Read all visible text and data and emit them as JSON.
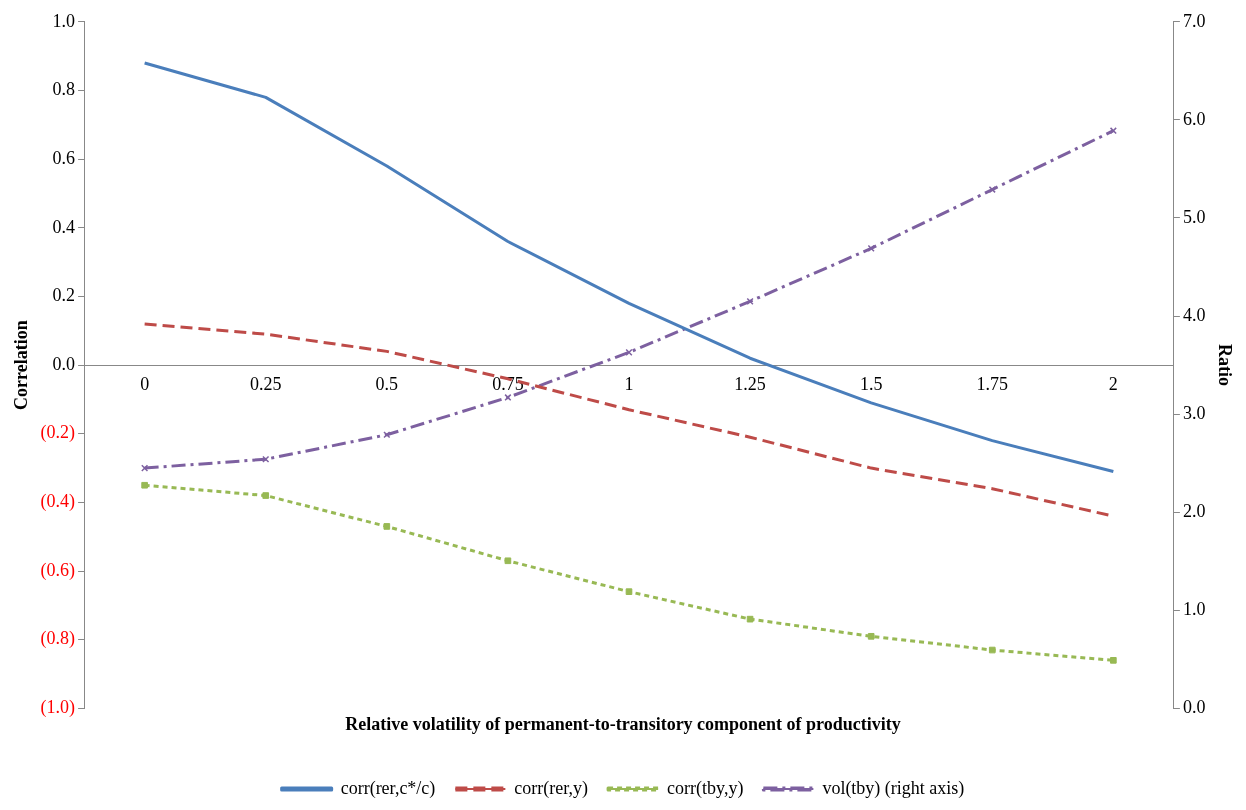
{
  "chart_data": {
    "type": "line",
    "xlabel": "Relative volatility of permanent-to-transitory component of productivity",
    "ylabel": "Correlation",
    "y2label": "Ratio",
    "categories": [
      "0",
      "0.25",
      "0.5",
      "0.75",
      "1",
      "1.25",
      "1.5",
      "1.75",
      "2"
    ],
    "series": [
      {
        "name": "corr(rer,c*/c)",
        "color": "#4a7ebb",
        "marker": "none",
        "line_style": "solid",
        "values": [
          0.88,
          0.78,
          0.58,
          0.36,
          0.18,
          0.02,
          -0.11,
          -0.22,
          -0.31
        ]
      },
      {
        "name": "corr(rer,y)",
        "color": "#be4b48",
        "marker": "none",
        "line_style": "dashed",
        "values": [
          0.12,
          0.09,
          0.04,
          -0.04,
          -0.13,
          -0.21,
          -0.3,
          -0.36,
          -0.44
        ]
      },
      {
        "name": "corr(tby,y)",
        "color": "#98b954",
        "marker": "square",
        "line_style": "dotted",
        "values": [
          -0.35,
          -0.38,
          -0.47,
          -0.57,
          -0.66,
          -0.74,
          -0.79,
          -0.83,
          -0.86
        ]
      },
      {
        "name": "vol(tby) (right axis)",
        "color": "#7d60a0",
        "marker": "cross",
        "line_style": "dashdot",
        "axis": "y2",
        "values": [
          2.45,
          2.54,
          2.79,
          3.17,
          3.63,
          4.15,
          4.69,
          5.29,
          5.89
        ]
      }
    ],
    "ylim": [
      -1,
      1
    ],
    "yticks": [
      {
        "value": -1,
        "label": "(1.0)"
      },
      {
        "value": -0.8,
        "label": "(0.8)"
      },
      {
        "value": -0.6,
        "label": "(0.6)"
      },
      {
        "value": -0.4,
        "label": "(0.4)"
      },
      {
        "value": -0.2,
        "label": "(0.2)"
      },
      {
        "value": 0,
        "label": "0.0"
      },
      {
        "value": 0.2,
        "label": "0.2"
      },
      {
        "value": 0.4,
        "label": "0.4"
      },
      {
        "value": 0.6,
        "label": "0.6"
      },
      {
        "value": 0.8,
        "label": "0.8"
      },
      {
        "value": 1,
        "label": "1.0"
      }
    ],
    "y2lim": [
      0,
      7
    ],
    "y2ticks": [
      {
        "value": 0,
        "label": "0.0"
      },
      {
        "value": 1,
        "label": "1.0"
      },
      {
        "value": 2,
        "label": "2.0"
      },
      {
        "value": 3,
        "label": "3.0"
      },
      {
        "value": 4,
        "label": "4.0"
      },
      {
        "value": 5,
        "label": "5.0"
      },
      {
        "value": 6,
        "label": "6.0"
      },
      {
        "value": 7,
        "label": "7.0"
      }
    ],
    "grid": false,
    "legend": "bottom"
  }
}
